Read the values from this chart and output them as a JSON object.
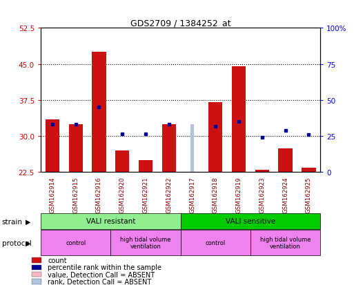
{
  "title": "GDS2709 / 1384252_at",
  "samples": [
    "GSM162914",
    "GSM162915",
    "GSM162916",
    "GSM162920",
    "GSM162921",
    "GSM162922",
    "GSM162917",
    "GSM162918",
    "GSM162919",
    "GSM162923",
    "GSM162924",
    "GSM162925"
  ],
  "count_values": [
    33.5,
    32.5,
    47.5,
    27.0,
    25.0,
    32.5,
    22.5,
    37.0,
    44.5,
    23.0,
    27.5,
    23.5
  ],
  "blue_dot_y": [
    32.5,
    32.5,
    36.0,
    30.5,
    30.5,
    32.5,
    32.5,
    32.0,
    33.0,
    29.8,
    31.2,
    30.3
  ],
  "absent_idx": 6,
  "absent_count_val": 32.5,
  "absent_rank_val": 32.5,
  "ylim_left": [
    22.5,
    52.5
  ],
  "yticks_left": [
    22.5,
    30.0,
    37.5,
    45.0,
    52.5
  ],
  "yticks_right": [
    0,
    25,
    50,
    75,
    100
  ],
  "bar_color": "#CC1111",
  "absent_bar_color": "#FFB6C1",
  "absent_rank_color": "#B0C4DE",
  "blue_dot_color": "#000099",
  "sample_bg_color": "#C8C8C8",
  "plot_bg_color": "#FFFFFF",
  "strain_resistant_color": "#90EE90",
  "strain_sensitive_color": "#00CC00",
  "protocol_color": "#EE82EE",
  "legend_labels": [
    "count",
    "percentile rank within the sample",
    "value, Detection Call = ABSENT",
    "rank, Detection Call = ABSENT"
  ],
  "legend_colors": [
    "#CC1111",
    "#000099",
    "#FFB6C1",
    "#B0C4DE"
  ]
}
